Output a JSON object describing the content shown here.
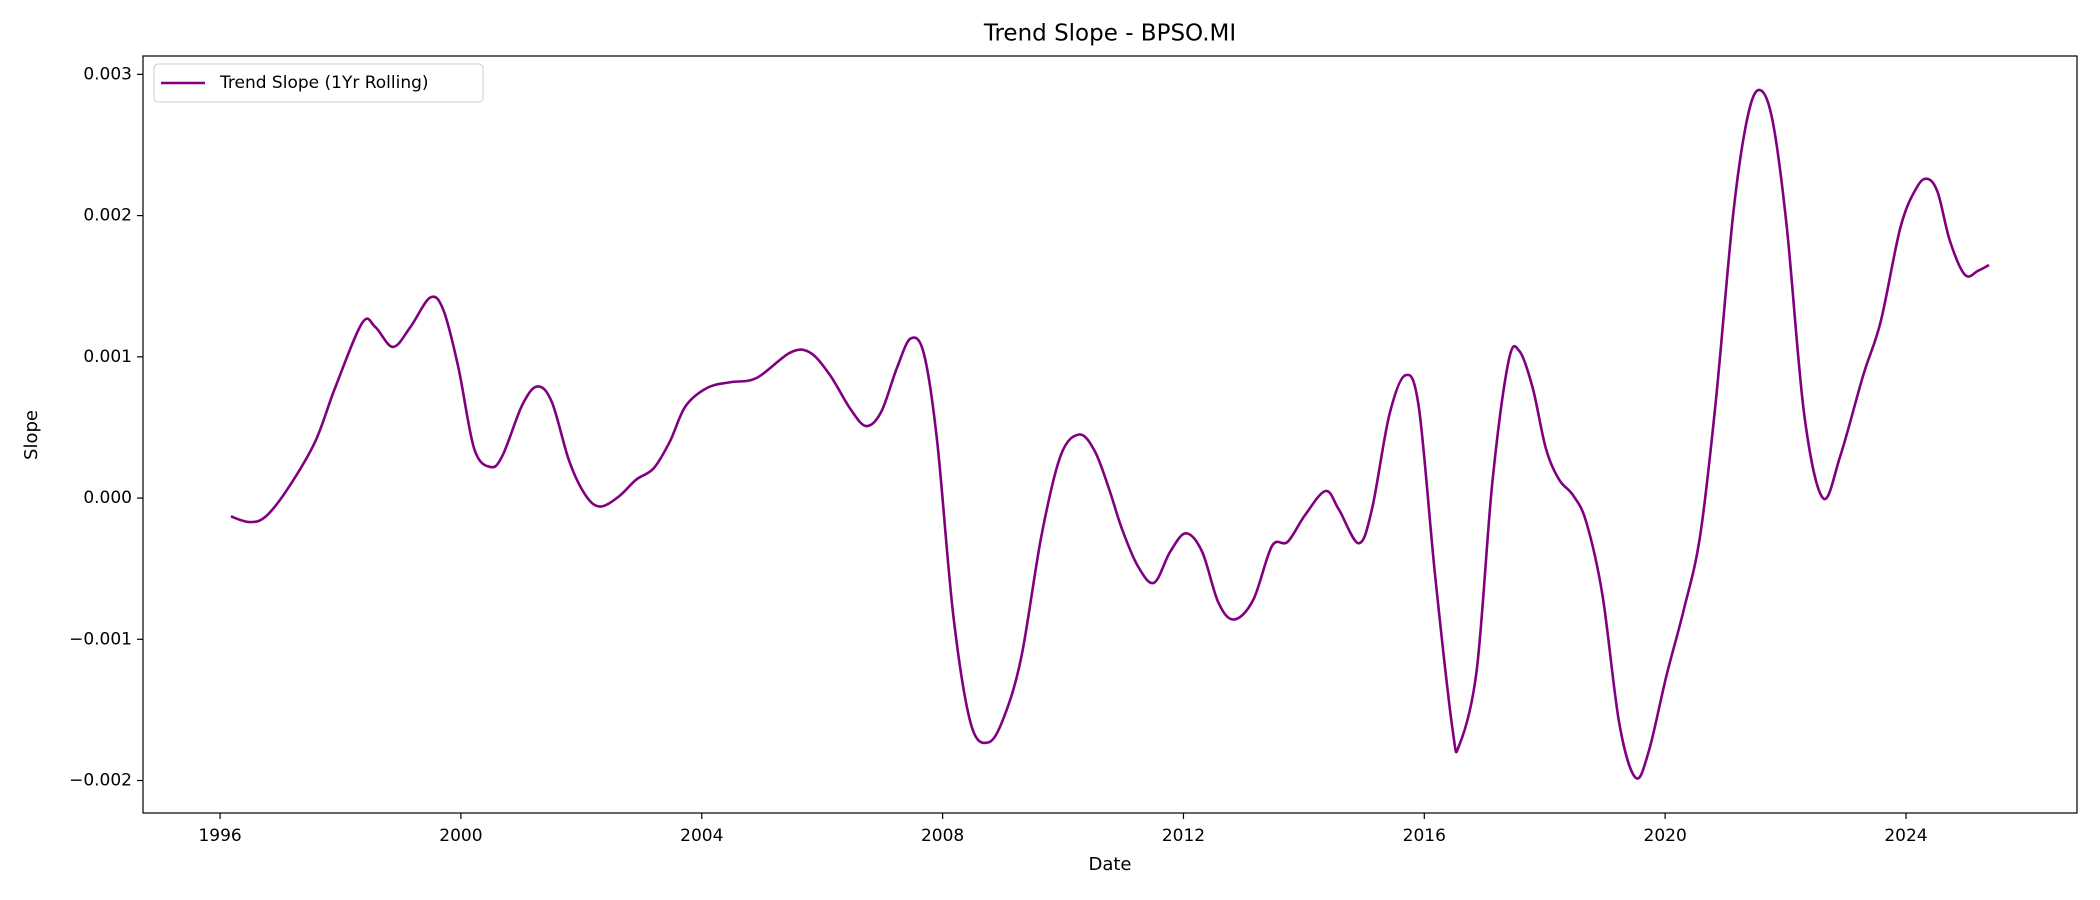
{
  "chart_data": {
    "type": "line",
    "title": "Trend Slope - BPSO.MI",
    "x_label": "Date",
    "y_label": "Slope",
    "xlim": [
      1994.72,
      2026.84
    ],
    "ylim": [
      -0.00223,
      0.00313
    ],
    "xticks": [
      1996,
      2000,
      2004,
      2008,
      2012,
      2016,
      2020,
      2024
    ],
    "yticks": [
      {
        "value": -0.002,
        "label": "−0.002"
      },
      {
        "value": -0.001,
        "label": "−0.001"
      },
      {
        "value": 0,
        "label": "0.000"
      },
      0.001,
      0.002,
      0.003
    ],
    "grid": false,
    "legend": "upper left",
    "x": [
      1996.18,
      1996.49,
      1996.76,
      1997.13,
      1997.58,
      1997.91,
      1998.36,
      1998.58,
      1998.87,
      1999.16,
      1999.49,
      1999.71,
      1999.96,
      2000.22,
      2000.49,
      2000.69,
      2001.02,
      2001.27,
      2001.51,
      2001.8,
      2002.07,
      2002.31,
      2002.62,
      2002.91,
      2003.2,
      2003.47,
      2003.73,
      2004.09,
      2004.47,
      2004.91,
      2005.47,
      2005.8,
      2006.13,
      2006.47,
      2006.73,
      2006.98,
      2007.24,
      2007.47,
      2007.69,
      2007.91,
      2008.18,
      2008.47,
      2008.76,
      2009.02,
      2009.31,
      2009.64,
      2009.96,
      2010.27,
      2010.53,
      2010.76,
      2010.98,
      2011.24,
      2011.51,
      2011.78,
      2012.04,
      2012.31,
      2012.58,
      2012.84,
      2013.16,
      2013.47,
      2013.73,
      2014.02,
      2014.36,
      2014.58,
      2014.91,
      2015.13,
      2015.42,
      2015.69,
      2015.91,
      2016.18,
      2016.47,
      2016.58,
      2016.87,
      2017.13,
      2017.4,
      2017.58,
      2017.8,
      2018.02,
      2018.24,
      2018.47,
      2018.69,
      2018.96,
      2019.24,
      2019.51,
      2019.73,
      2020.02,
      2020.31,
      2020.58,
      2020.84,
      2021.13,
      2021.36,
      2021.56,
      2021.78,
      2022.02,
      2022.31,
      2022.62,
      2022.91,
      2023.29,
      2023.58,
      2023.91,
      2024.18,
      2024.36,
      2024.53,
      2024.73,
      2024.98,
      2025.2,
      2025.38
    ],
    "series": [
      {
        "name": "Trend Slope (1Yr Rolling)",
        "color": "#800080",
        "values": [
          -0.00013,
          -0.00017,
          -0.00013,
          7e-05,
          0.0004,
          0.00078,
          0.00124,
          0.00121,
          0.00107,
          0.00121,
          0.00142,
          0.00133,
          0.00092,
          0.00035,
          0.00022,
          0.0003,
          0.00066,
          0.00079,
          0.00068,
          0.00026,
          2e-05,
          -6e-05,
          1e-05,
          0.00013,
          0.00021,
          0.0004,
          0.00065,
          0.00078,
          0.00082,
          0.00085,
          0.00103,
          0.00103,
          0.00087,
          0.00063,
          0.00051,
          0.00061,
          0.00092,
          0.00113,
          0.00102,
          0.0004,
          -0.00084,
          -0.0016,
          -0.00173,
          -0.00155,
          -0.00112,
          -0.00027,
          0.0003,
          0.00045,
          0.00033,
          7e-05,
          -0.00022,
          -0.00048,
          -0.0006,
          -0.00038,
          -0.00025,
          -0.00038,
          -0.00074,
          -0.00086,
          -0.00072,
          -0.00034,
          -0.00031,
          -0.00012,
          5e-05,
          -8e-05,
          -0.00032,
          -8e-05,
          0.00059,
          0.00087,
          0.00064,
          -0.00055,
          -0.00164,
          -0.00175,
          -0.00122,
          0.00011,
          0.00097,
          0.00104,
          0.00078,
          0.00035,
          0.00013,
          2e-05,
          -0.00017,
          -0.00069,
          -0.0016,
          -0.00198,
          -0.00179,
          -0.00126,
          -0.00079,
          -0.00027,
          0.00068,
          0.00201,
          0.00268,
          0.00289,
          0.00268,
          0.00192,
          0.00059,
          0,
          0.0003,
          0.00087,
          0.00125,
          0.00192,
          0.0022,
          0.00226,
          0.00216,
          0.00182,
          0.00158,
          0.00161,
          0.00165
        ]
      }
    ]
  }
}
